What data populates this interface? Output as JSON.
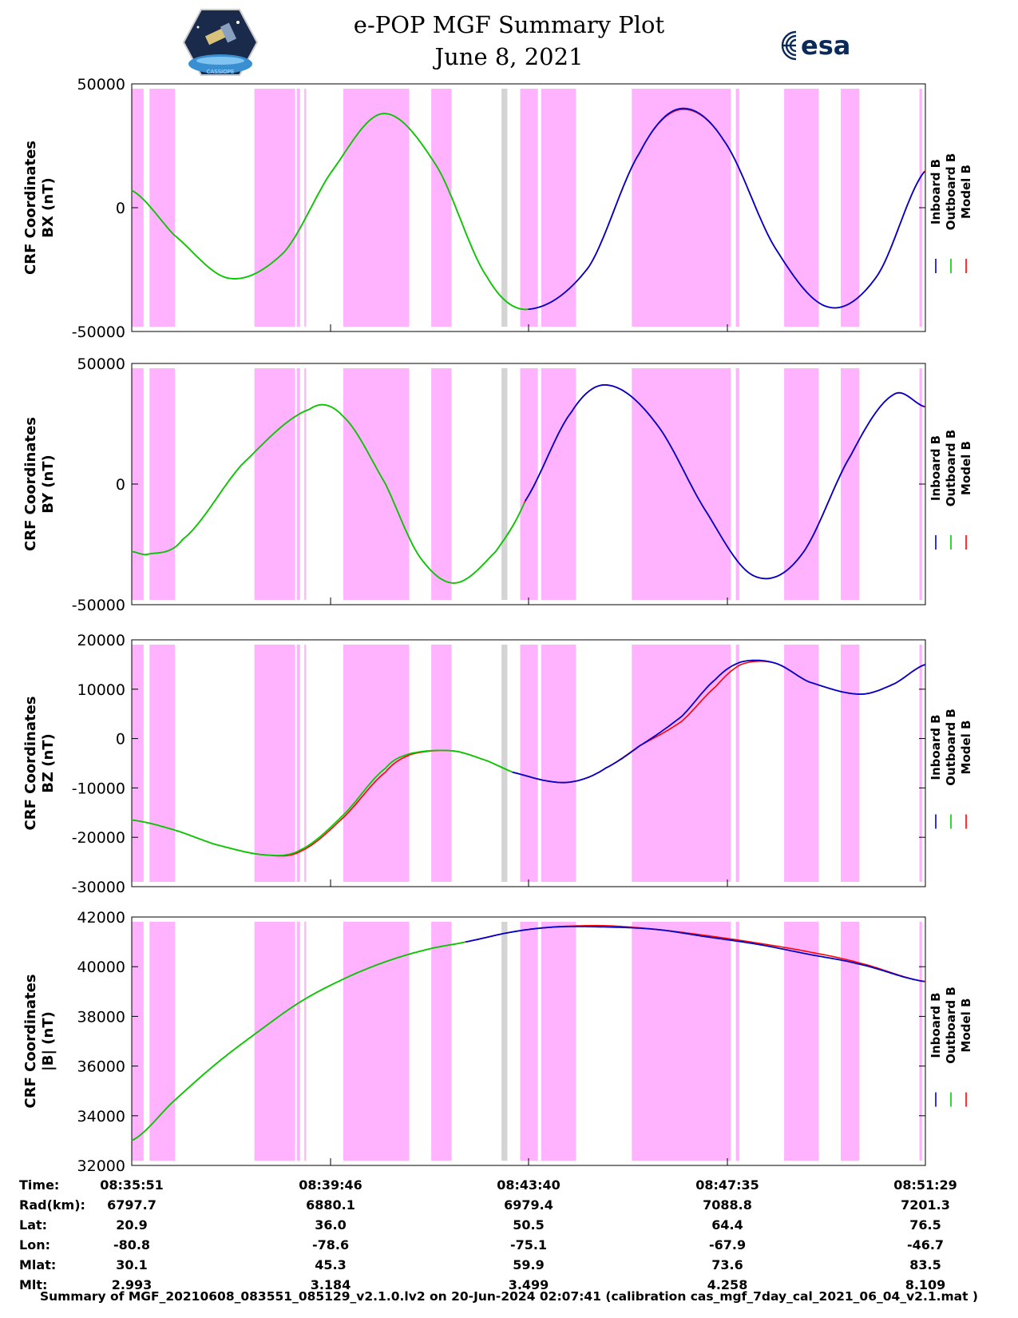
{
  "header": {
    "title": "e-POP MGF Summary Plot",
    "date": "June 8, 2021",
    "esa_logo_text": "esa",
    "epop_logo_text": "CASSIOPE"
  },
  "colors": {
    "inboard": "#0000cc",
    "outboard": "#00cc00",
    "model": "#ff0000",
    "bar_magenta": "#ffb3ff",
    "bar_gray": "#d4d4d4"
  },
  "chart_data": {
    "type": "line",
    "shared_x": {
      "unit": "seconds since 08:35:51",
      "range": [
        0,
        938
      ],
      "ticks": [
        0,
        235,
        469,
        704,
        938
      ],
      "tick_labels": [
        "08:35:51",
        "08:39:46",
        "08:43:40",
        "08:47:35",
        "08:51:29"
      ]
    },
    "legend": [
      "Inboard B",
      "Outboard B",
      "Model B"
    ],
    "bars": [
      {
        "x0": 0,
        "x1": 14,
        "kind": "mask"
      },
      {
        "x0": 21,
        "x1": 51,
        "kind": "mask"
      },
      {
        "x0": 145,
        "x1": 193,
        "kind": "mask"
      },
      {
        "x0": 195,
        "x1": 199,
        "kind": "mask"
      },
      {
        "x0": 204,
        "x1": 206,
        "kind": "mask"
      },
      {
        "x0": 250,
        "x1": 328,
        "kind": "mask"
      },
      {
        "x0": 354,
        "x1": 378,
        "kind": "mask"
      },
      {
        "x0": 437,
        "x1": 444,
        "kind": "gap"
      },
      {
        "x0": 459,
        "x1": 480,
        "kind": "mask"
      },
      {
        "x0": 484,
        "x1": 525,
        "kind": "mask"
      },
      {
        "x0": 591,
        "x1": 708,
        "kind": "mask"
      },
      {
        "x0": 714,
        "x1": 718,
        "kind": "mask"
      },
      {
        "x0": 771,
        "x1": 812,
        "kind": "mask"
      },
      {
        "x0": 838,
        "x1": 860,
        "kind": "mask"
      },
      {
        "x0": 931,
        "x1": 934,
        "kind": "mask"
      }
    ],
    "panels": [
      {
        "name": "BX",
        "ylabel_line1": "CRF Coordinates",
        "ylabel_line2": "BX (nT)",
        "ylim": [
          -50000,
          50000
        ],
        "yticks": [
          -50000,
          0,
          50000
        ],
        "ytick_labels": [
          "-50000",
          "0",
          "50000"
        ],
        "inboard_start": 469,
        "curve_x": [
          0,
          50,
          115,
          180,
          235,
          297,
          360,
          420,
          469,
          540,
          600,
          648,
          700,
          760,
          822,
          880,
          938
        ],
        "curve_y": [
          7000,
          -11000,
          -28500,
          -18000,
          14000,
          38000,
          17000,
          -28000,
          -41000,
          -24000,
          22000,
          40000,
          27000,
          -16000,
          -40000,
          -28000,
          15000
        ],
        "model_y": [
          7000,
          -11000,
          -28500,
          -18000,
          14000,
          38000,
          17000,
          -28000,
          -41000,
          -24000,
          22000,
          39600,
          27000,
          -16000,
          -40000,
          -28000,
          15000
        ]
      },
      {
        "name": "BY",
        "ylabel_line1": "CRF Coordinates",
        "ylabel_line2": "BY (nT)",
        "ylim": [
          -50000,
          50000
        ],
        "yticks": [
          -50000,
          0,
          50000
        ],
        "ytick_labels": [
          "-50000",
          "0",
          "50000"
        ],
        "inboard_start": 465,
        "curve_x": [
          0,
          20,
          60,
          130,
          210,
          250,
          300,
          340,
          382,
          430,
          465,
          520,
          563,
          620,
          680,
          735,
          790,
          850,
          900,
          938
        ],
        "curve_y": [
          -28000,
          -29000,
          -23000,
          8000,
          31000,
          28000,
          0,
          -30000,
          -41000,
          -28000,
          -7000,
          30000,
          41000,
          25000,
          -12000,
          -38000,
          -30000,
          12000,
          37000,
          32000
        ],
        "model_y": [
          -28000,
          -29000,
          -23000,
          8000,
          31000,
          28000,
          0,
          -30000,
          -41000,
          -28000,
          -7000,
          30000,
          41000,
          25000,
          -12000,
          -38000,
          -30000,
          12000,
          37000,
          32000
        ]
      },
      {
        "name": "BZ",
        "ylabel_line1": "CRF Coordinates",
        "ylabel_line2": "BZ (nT)",
        "ylim": [
          -30000,
          20000
        ],
        "yticks": [
          -30000,
          -20000,
          -10000,
          0,
          10000,
          20000
        ],
        "ytick_labels": [
          "-30000",
          "-20000",
          "-10000",
          "0",
          "10000",
          "20000"
        ],
        "inboard_start": 450,
        "curve_x": [
          0,
          50,
          100,
          160,
          200,
          250,
          300,
          330,
          380,
          420,
          450,
          500,
          530,
          560,
          600,
          650,
          690,
          720,
          760,
          800,
          860,
          900,
          938
        ],
        "curve_y": [
          -16500,
          -18500,
          -21500,
          -23600,
          -22500,
          -15500,
          -6000,
          -3000,
          -2500,
          -4500,
          -6800,
          -8800,
          -8400,
          -6000,
          -1500,
          4500,
          12000,
          15500,
          15300,
          11500,
          9000,
          11000,
          15000
        ],
        "model_y": [
          -16500,
          -18500,
          -21500,
          -23600,
          -22800,
          -16000,
          -6800,
          -3200,
          -2500,
          -4500,
          -6800,
          -8800,
          -8400,
          -6000,
          -1500,
          3500,
          10500,
          15000,
          15300,
          11500,
          9000,
          11000,
          15000
        ]
      },
      {
        "name": "|B|",
        "ylabel_line1": "CRF Coordinates",
        "ylabel_line2": "|B| (nT)",
        "ylim": [
          32000,
          42000
        ],
        "yticks": [
          32000,
          34000,
          36000,
          38000,
          40000,
          42000
        ],
        "ytick_labels": [
          "32000",
          "34000",
          "36000",
          "38000",
          "40000",
          "42000"
        ],
        "inboard_start": 395,
        "curve_x": [
          0,
          50,
          100,
          150,
          200,
          250,
          300,
          350,
          395,
          450,
          500,
          560,
          620,
          680,
          740,
          800,
          860,
          938
        ],
        "curve_y": [
          33000,
          34600,
          36100,
          37400,
          38600,
          39500,
          40200,
          40700,
          41000,
          41400,
          41600,
          41600,
          41500,
          41200,
          40900,
          40500,
          40100,
          39400
        ],
        "model_y": [
          33000,
          34600,
          36100,
          37400,
          38600,
          39500,
          40200,
          40700,
          41000,
          41400,
          41600,
          41650,
          41500,
          41250,
          40950,
          40600,
          40150,
          39400
        ]
      }
    ]
  },
  "ephemeris": {
    "rows": [
      {
        "label": "Time:",
        "values": [
          "08:35:51",
          "08:39:46",
          "08:43:40",
          "08:47:35",
          "08:51:29"
        ]
      },
      {
        "label": "Rad(km):",
        "values": [
          "6797.7",
          "6880.1",
          "6979.4",
          "7088.8",
          "7201.3"
        ]
      },
      {
        "label": "Lat:",
        "values": [
          "20.9",
          "36.0",
          "50.5",
          "64.4",
          "76.5"
        ]
      },
      {
        "label": "Lon:",
        "values": [
          "-80.8",
          "-78.6",
          "-75.1",
          "-67.9",
          "-46.7"
        ]
      },
      {
        "label": "Mlat:",
        "values": [
          "30.1",
          "45.3",
          "59.9",
          "73.6",
          "83.5"
        ]
      },
      {
        "label": "Mlt:",
        "values": [
          "2.993",
          "3.184",
          "3.499",
          "4.258",
          "8.109"
        ]
      }
    ]
  },
  "footer": "Summary of MGF_20210608_083551_085129_v2.1.0.lv2 on 20-Jun-2024 02:07:41 (calibration cas_mgf_7day_cal_2021_06_04_v2.1.mat )"
}
